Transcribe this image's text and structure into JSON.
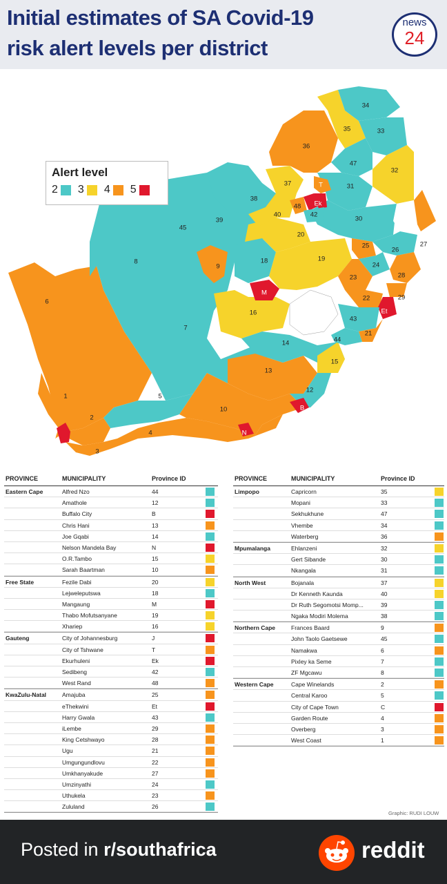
{
  "header": {
    "title_line1": "Initial estimates of SA Covid-19",
    "title_line2": "risk alert levels per district",
    "logo_top": "news",
    "logo_bottom": "24"
  },
  "colors": {
    "level2": "#4dc8c7",
    "level3": "#f6d32b",
    "level4": "#f7941d",
    "level5": "#e0182d",
    "navy": "#1d2f73"
  },
  "legend": {
    "title": "Alert level",
    "items": [
      {
        "label": "2",
        "color": "#4dc8c7"
      },
      {
        "label": "3",
        "color": "#f6d32b"
      },
      {
        "label": "4",
        "color": "#f7941d"
      },
      {
        "label": "5",
        "color": "#e0182d"
      }
    ]
  },
  "map_labels": [
    "34",
    "35",
    "33",
    "36",
    "47",
    "32",
    "37",
    "T",
    "31",
    "38",
    "48",
    "Ek",
    "42",
    "45",
    "39",
    "40",
    "30",
    "20",
    "27",
    "8",
    "25",
    "26",
    "9",
    "18",
    "19",
    "24",
    "28",
    "M",
    "23",
    "29",
    "22",
    "6",
    "Et",
    "16",
    "43",
    "7",
    "21",
    "44",
    "14",
    "15",
    "13",
    "12",
    "1",
    "5",
    "10",
    "B",
    "2",
    "N",
    "4",
    "C",
    "3"
  ],
  "table_headers": {
    "province": "PROVINCE",
    "municipality": "MUNICIPALITY",
    "province_id": "Province ID"
  },
  "left_table": [
    {
      "province": "Eastern Cape",
      "rows": [
        {
          "m": "Alfred Nzo",
          "id": "44",
          "level": 2
        },
        {
          "m": "Amathole",
          "id": "12",
          "level": 2
        },
        {
          "m": "Buffalo City",
          "id": "B",
          "level": 5
        },
        {
          "m": "Chris Hani",
          "id": "13",
          "level": 4
        },
        {
          "m": "Joe Gqabi",
          "id": "14",
          "level": 2
        },
        {
          "m": "Nelson Mandela Bay",
          "id": "N",
          "level": 5
        },
        {
          "m": "O.R.Tambo",
          "id": "15",
          "level": 3
        },
        {
          "m": "Sarah Baartman",
          "id": "10",
          "level": 4
        }
      ]
    },
    {
      "province": "Free State",
      "rows": [
        {
          "m": "Fezile Dabi",
          "id": "20",
          "level": 3
        },
        {
          "m": "Lejweleputswa",
          "id": "18",
          "level": 2
        },
        {
          "m": "Mangaung",
          "id": "M",
          "level": 5
        },
        {
          "m": "Thabo Mofutsanyane",
          "id": "19",
          "level": 3
        },
        {
          "m": "Xhariep",
          "id": "16",
          "level": 3
        }
      ]
    },
    {
      "province": "Gauteng",
      "rows": [
        {
          "m": "City of Johannesburg",
          "id": "J",
          "level": 5
        },
        {
          "m": "City of Tshwane",
          "id": "T",
          "level": 4
        },
        {
          "m": "Ekurhuleni",
          "id": "Ek",
          "level": 5
        },
        {
          "m": "Sedibeng",
          "id": "42",
          "level": 2
        },
        {
          "m": "West Rand",
          "id": "48",
          "level": 4
        }
      ]
    },
    {
      "province": "KwaZulu-Natal",
      "rows": [
        {
          "m": "Amajuba",
          "id": "25",
          "level": 4
        },
        {
          "m": "eThekwini",
          "id": "Et",
          "level": 5
        },
        {
          "m": "Harry Gwala",
          "id": "43",
          "level": 2
        },
        {
          "m": "iLembe",
          "id": "29",
          "level": 4
        },
        {
          "m": "King Cetshwayo",
          "id": "28",
          "level": 4
        },
        {
          "m": "Ugu",
          "id": "21",
          "level": 4
        },
        {
          "m": "Umgungundlovu",
          "id": "22",
          "level": 4
        },
        {
          "m": "Umkhanyakude",
          "id": "27",
          "level": 4
        },
        {
          "m": "Umzinyathi",
          "id": "24",
          "level": 2
        },
        {
          "m": "Uthukela",
          "id": "23",
          "level": 4
        },
        {
          "m": "Zululand",
          "id": "26",
          "level": 2
        }
      ]
    }
  ],
  "right_table": [
    {
      "province": "Limpopo",
      "rows": [
        {
          "m": "Capricorn",
          "id": "35",
          "level": 3
        },
        {
          "m": "Mopani",
          "id": "33",
          "level": 2
        },
        {
          "m": "Sekhukhune",
          "id": "47",
          "level": 2
        },
        {
          "m": "Vhembe",
          "id": "34",
          "level": 2
        },
        {
          "m": "Waterberg",
          "id": "36",
          "level": 4
        }
      ]
    },
    {
      "province": "Mpumalanga",
      "rows": [
        {
          "m": "Ehlanzeni",
          "id": "32",
          "level": 3
        },
        {
          "m": "Gert Sibande",
          "id": "30",
          "level": 2
        },
        {
          "m": "Nkangala",
          "id": "31",
          "level": 2
        }
      ]
    },
    {
      "province": "North West",
      "rows": [
        {
          "m": "Bojanala",
          "id": "37",
          "level": 3
        },
        {
          "m": "Dr Kenneth Kaunda",
          "id": "40",
          "level": 3
        },
        {
          "m": "Dr Ruth Segomotsi Momp...",
          "id": "39",
          "level": 2
        },
        {
          "m": "Ngaka Modiri Molema",
          "id": "38",
          "level": 2
        }
      ]
    },
    {
      "province": "Northern Cape",
      "rows": [
        {
          "m": "Frances Baard",
          "id": "9",
          "level": 4
        },
        {
          "m": "John Taolo Gaetsewe",
          "id": "45",
          "level": 2
        },
        {
          "m": "Namakwa",
          "id": "6",
          "level": 4
        },
        {
          "m": "Pixley ka Seme",
          "id": "7",
          "level": 2
        },
        {
          "m": "ZF Mgcawu",
          "id": "8",
          "level": 2
        }
      ]
    },
    {
      "province": "Western Cape",
      "rows": [
        {
          "m": "Cape Winelands",
          "id": "2",
          "level": 4
        },
        {
          "m": "Central Karoo",
          "id": "5",
          "level": 2
        },
        {
          "m": "City of Cape Town",
          "id": "C",
          "level": 5
        },
        {
          "m": "Garden Route",
          "id": "4",
          "level": 4
        },
        {
          "m": "Overberg",
          "id": "3",
          "level": 4
        },
        {
          "m": "West Coast",
          "id": "1",
          "level": 4
        }
      ]
    }
  ],
  "credit": "Graphic: RUDI LOUW",
  "footer": {
    "posted_prefix": "Posted in ",
    "subreddit": "r/southafrica",
    "brand": "reddit"
  }
}
